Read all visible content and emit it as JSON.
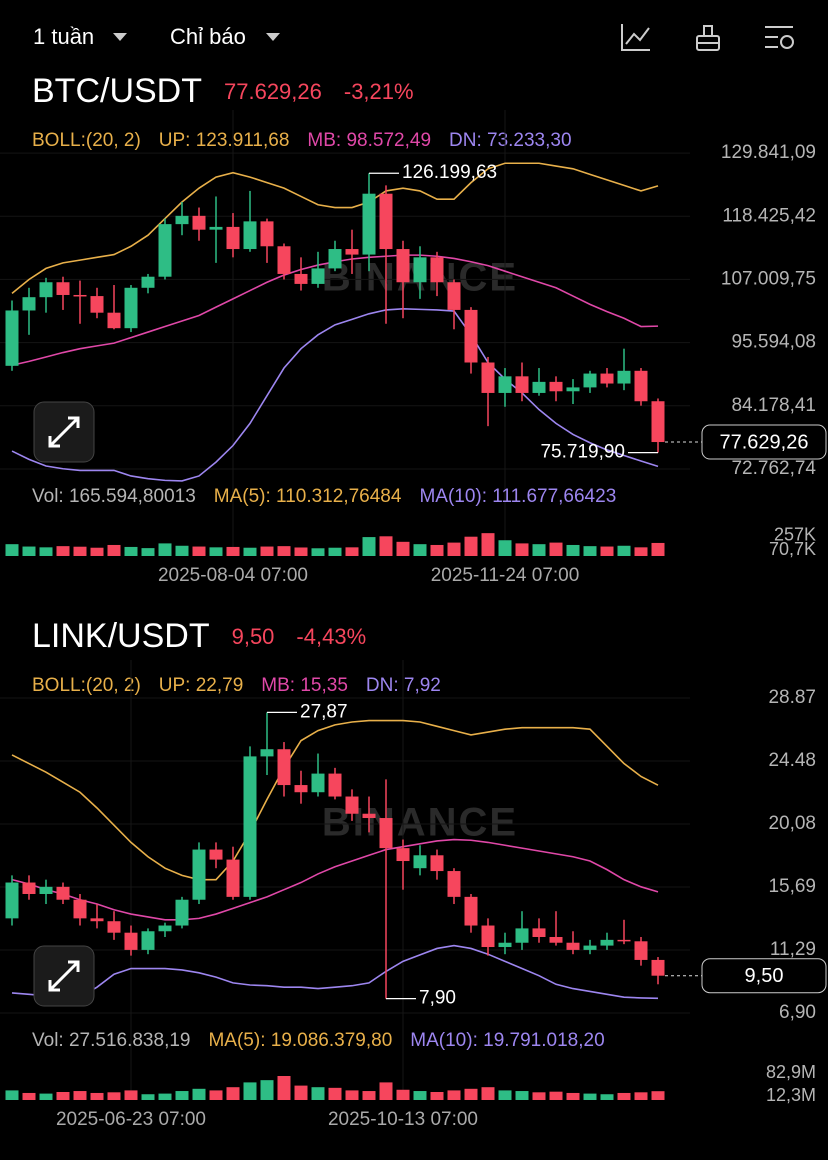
{
  "toolbar": {
    "interval": "1 tuần",
    "indicators": "Chỉ báo"
  },
  "chart_data": [
    {
      "type": "candlestick",
      "title": "BTC/USDT",
      "price": "77.629,26",
      "change": "-3,21%",
      "indicator": "BOLL:(20, 2)",
      "up_color": "#2ebd85",
      "down_color": "#f6465d",
      "watermark": "BINANCE",
      "categories": [
        null,
        null,
        null,
        null,
        null,
        null,
        null,
        null,
        null,
        null,
        null,
        null,
        null,
        "2025-08-04 07:00",
        null,
        null,
        null,
        null,
        null,
        null,
        null,
        null,
        null,
        null,
        null,
        null,
        null,
        null,
        null,
        "2025-11-24 07:00",
        null,
        null,
        null,
        null,
        null,
        null,
        null,
        null,
        null
      ],
      "open": [
        91400,
        101400,
        103800,
        106500,
        104200,
        104000,
        101000,
        98200,
        105500,
        107500,
        117000,
        118500,
        116000,
        116500,
        112500,
        117500,
        113000,
        108000,
        106200,
        109000,
        112500,
        111500,
        122500,
        112500,
        106500,
        111000,
        106500,
        101500,
        92000,
        86500,
        89500,
        86500,
        88500,
        86800,
        87500,
        90000,
        88200,
        90500,
        85000
      ],
      "high": [
        103200,
        105500,
        107300,
        107500,
        106800,
        105500,
        106000,
        106000,
        108000,
        118000,
        121000,
        120000,
        122000,
        119000,
        123000,
        118000,
        113500,
        111000,
        112000,
        114000,
        116000,
        126199.63,
        124000,
        114000,
        113000,
        112000,
        107000,
        102000,
        93000,
        91000,
        92000,
        91000,
        89500,
        89000,
        90500,
        91000,
        94500,
        91000,
        85500
      ],
      "low": [
        90500,
        97000,
        101000,
        101500,
        99000,
        100000,
        98000,
        97500,
        104500,
        107000,
        115000,
        114000,
        110000,
        111000,
        112000,
        110000,
        107000,
        105000,
        105500,
        108500,
        108000,
        108500,
        99000,
        100000,
        103500,
        104000,
        98000,
        90000,
        80500,
        84000,
        85000,
        86000,
        85000,
        84500,
        86500,
        87500,
        87000,
        84200,
        75719.9
      ],
      "close": [
        101400,
        103800,
        106500,
        104200,
        104000,
        101000,
        98200,
        105500,
        107500,
        117000,
        118500,
        116000,
        116500,
        112500,
        117500,
        113000,
        108000,
        106200,
        109000,
        112500,
        111500,
        122500,
        112500,
        106500,
        111000,
        106500,
        101500,
        92000,
        86500,
        89500,
        86500,
        88500,
        86800,
        87500,
        90000,
        88200,
        90500,
        85000,
        77629.26
      ],
      "bands": [
        {
          "label": "UP: 123.911,68",
          "color": "#e8b04a",
          "values": [
            104500,
            107000,
            109000,
            110000,
            110500,
            111000,
            111500,
            113000,
            115000,
            118000,
            121000,
            123500,
            125500,
            126300,
            125500,
            124500,
            123500,
            122000,
            120500,
            120000,
            120000,
            121000,
            123000,
            123500,
            123000,
            121500,
            121500,
            124500,
            127000,
            128000,
            128000,
            128000,
            127500,
            127000,
            126000,
            125000,
            124000,
            123000,
            123911.68
          ]
        },
        {
          "label": "MB: 98.572,49",
          "color": "#e048a8",
          "values": [
            91500,
            92200,
            93000,
            93800,
            94500,
            95000,
            95500,
            96500,
            97500,
            98500,
            99500,
            100500,
            102000,
            103500,
            105000,
            106500,
            107800,
            108800,
            109600,
            110200,
            110700,
            111000,
            111200,
            111400,
            111400,
            111200,
            110800,
            110200,
            109500,
            108500,
            107500,
            106500,
            105500,
            104000,
            102500,
            101200,
            100000,
            98500,
            98572.49
          ]
        },
        {
          "label": "DN: 73.233,30",
          "color": "#9d86f0",
          "values": [
            76000,
            74500,
            73300,
            72800,
            72500,
            72500,
            72500,
            71500,
            71000,
            70700,
            70600,
            71500,
            74000,
            77000,
            81000,
            86000,
            91000,
            94500,
            97000,
            98800,
            99800,
            100800,
            101500,
            101700,
            101600,
            101500,
            101300,
            97000,
            92000,
            89000,
            86500,
            83500,
            81000,
            79000,
            77500,
            76200,
            75200,
            74200,
            73233.3
          ]
        }
      ],
      "ylim": [
        69866,
        134009
      ],
      "yticks": [
        {
          "value": 129841.09,
          "label": "129.841,09"
        },
        {
          "value": 118425.42,
          "label": "118.425,42"
        },
        {
          "value": 107009.75,
          "label": "107.009,75"
        },
        {
          "value": 95594.08,
          "label": "95.594,08"
        },
        {
          "value": 84178.41,
          "label": "84.178,41"
        },
        {
          "value": 72762.74,
          "label": "72.762,74"
        }
      ],
      "high_mark": {
        "value": 126199.63,
        "label": "126.199,63"
      },
      "low_mark": {
        "value": 75719.9,
        "label": "75.719,90"
      },
      "last": {
        "value": 77629.26,
        "label": "77.629,26"
      },
      "stats": [
        "Vol: 165.594,80013",
        "MA(5): 110.312,76484",
        "MA(10): 111.677,66423"
      ],
      "volume": {
        "values": [
          150000,
          120000,
          110000,
          125000,
          118000,
          105000,
          140000,
          115000,
          100000,
          160000,
          130000,
          120000,
          110000,
          115000,
          105000,
          120000,
          125000,
          108000,
          98000,
          105000,
          110000,
          240000,
          250000,
          180000,
          150000,
          140000,
          170000,
          245000,
          290000,
          200000,
          160000,
          150000,
          170000,
          140000,
          125000,
          120000,
          130000,
          110000,
          165594.80013
        ],
        "ylim": [
          0,
          330000
        ],
        "yticks": [
          {
            "value": 257000,
            "label": "257K"
          },
          {
            "value": 70700,
            "label": "70,7K"
          }
        ]
      }
    },
    {
      "type": "candlestick",
      "title": "LINK/USDT",
      "price": "9,50",
      "change": "-4,43%",
      "indicator": "BOLL:(20, 2)",
      "up_color": "#2ebd85",
      "down_color": "#f6465d",
      "watermark": "BINANCE",
      "categories": [
        null,
        null,
        null,
        null,
        null,
        null,
        null,
        "2025-06-23 07:00",
        null,
        null,
        null,
        null,
        null,
        null,
        null,
        null,
        null,
        null,
        null,
        null,
        null,
        null,
        null,
        "2025-10-13 07:00",
        null,
        null,
        null,
        null,
        null,
        null,
        null,
        null,
        null,
        null,
        null,
        null,
        null,
        null,
        null
      ],
      "open": [
        13.5,
        16.0,
        15.2,
        15.7,
        14.8,
        13.5,
        13.3,
        12.5,
        11.3,
        12.6,
        13.0,
        14.8,
        18.3,
        17.6,
        15.0,
        24.8,
        25.3,
        22.8,
        22.3,
        23.6,
        22.0,
        20.8,
        20.5,
        18.4,
        17.0,
        17.9,
        16.8,
        15.0,
        13.0,
        11.5,
        11.8,
        12.8,
        12.2,
        11.8,
        11.3,
        11.6,
        12.0,
        11.9,
        10.6
      ],
      "high": [
        16.5,
        16.5,
        16.2,
        16.0,
        15.2,
        14.5,
        14.0,
        13.0,
        12.8,
        13.2,
        15.0,
        18.8,
        18.8,
        18.5,
        25.5,
        27.87,
        25.8,
        23.8,
        25.0,
        24.0,
        22.5,
        22.0,
        23.2,
        19.0,
        18.6,
        18.3,
        17.0,
        15.2,
        13.5,
        12.5,
        14.0,
        13.5,
        14.0,
        12.6,
        12.0,
        12.5,
        13.4,
        12.2,
        10.8
      ],
      "low": [
        13.0,
        14.8,
        14.5,
        14.5,
        13.0,
        12.8,
        12.0,
        10.9,
        11.0,
        12.2,
        12.8,
        14.5,
        17.0,
        14.8,
        14.8,
        23.5,
        22.0,
        21.5,
        22.0,
        21.8,
        20.3,
        19.5,
        7.9,
        15.5,
        16.5,
        16.2,
        14.5,
        12.5,
        10.9,
        11.0,
        11.3,
        11.8,
        11.6,
        11.0,
        11.0,
        11.3,
        11.7,
        10.2,
        8.9
      ],
      "close": [
        16.0,
        15.2,
        15.7,
        14.8,
        13.5,
        13.3,
        12.5,
        11.3,
        12.6,
        13.0,
        14.8,
        18.3,
        17.6,
        15.0,
        24.8,
        25.3,
        22.8,
        22.3,
        23.6,
        22.0,
        20.8,
        20.5,
        18.4,
        17.5,
        17.9,
        16.8,
        15.0,
        13.0,
        11.5,
        11.8,
        12.8,
        12.2,
        11.8,
        11.3,
        11.6,
        12.0,
        11.9,
        10.6,
        9.5
      ],
      "bands": [
        {
          "label": "UP: 22,79",
          "color": "#e8b04a",
          "values": [
            24.9,
            24.3,
            23.7,
            23.0,
            22.3,
            21.2,
            20.0,
            18.8,
            17.8,
            17.0,
            16.5,
            16.2,
            16.2,
            17.5,
            19.5,
            21.8,
            24.0,
            25.9,
            26.6,
            27.0,
            27.2,
            27.3,
            27.3,
            27.3,
            27.2,
            26.9,
            26.6,
            26.3,
            26.5,
            26.7,
            26.8,
            26.8,
            26.8,
            26.8,
            26.7,
            25.5,
            24.3,
            23.4,
            22.79
          ]
        },
        {
          "label": "MB: 15,35",
          "color": "#e048a8",
          "values": [
            16.2,
            15.9,
            15.5,
            15.2,
            14.8,
            14.5,
            14.1,
            13.8,
            13.6,
            13.4,
            13.4,
            13.5,
            13.8,
            14.2,
            14.6,
            15.0,
            15.5,
            16.0,
            16.6,
            17.1,
            17.5,
            17.9,
            18.3,
            18.5,
            18.7,
            18.9,
            19.0,
            18.95,
            18.8,
            18.6,
            18.4,
            18.2,
            18.0,
            17.8,
            17.5,
            16.9,
            16.2,
            15.7,
            15.35
          ]
        },
        {
          "label": "DN: 7,92",
          "color": "#9d86f0",
          "values": [
            8.3,
            8.2,
            8.1,
            8.0,
            8.0,
            8.7,
            9.6,
            10.0,
            10.0,
            10.0,
            9.9,
            9.7,
            9.4,
            9.0,
            8.85,
            8.8,
            8.7,
            8.7,
            8.6,
            8.7,
            8.8,
            9.0,
            9.8,
            10.5,
            10.95,
            11.4,
            11.6,
            11.4,
            11.0,
            10.5,
            10.0,
            9.5,
            8.9,
            8.6,
            8.4,
            8.2,
            8.0,
            7.95,
            7.92
          ]
        }
      ],
      "ylim": [
        6.06,
        30.13
      ],
      "yticks": [
        28.87,
        24.48,
        {
          "value": 20.08,
          "label": "20,08"
        },
        {
          "value": 15.69,
          "label": "15,69"
        },
        {
          "value": 11.29,
          "label": "11,29"
        },
        {
          "value": 6.9,
          "label": "6,90"
        }
      ],
      "high_mark": {
        "value": 27.87,
        "label": "27,87"
      },
      "low_mark": {
        "value": 7.9,
        "label": "7,90"
      },
      "last": {
        "value": 9.5,
        "label": "9,50"
      },
      "stats": [
        "Vol: 27.516.838,19",
        "MA(5): 19.086.379,80",
        "MA(10): 19.791.018,20"
      ],
      "volume": {
        "values": [
          30000000,
          22000000,
          20000000,
          25000000,
          28000000,
          22000000,
          24000000,
          30000000,
          18000000,
          20000000,
          28000000,
          35000000,
          30000000,
          40000000,
          55000000,
          62000000,
          75000000,
          45000000,
          40000000,
          38000000,
          30000000,
          28000000,
          55000000,
          32000000,
          28000000,
          25000000,
          30000000,
          35000000,
          40000000,
          30000000,
          28000000,
          24000000,
          26000000,
          22000000,
          20000000,
          18000000,
          22000000,
          24000000,
          27516838.19
        ],
        "ylim": [
          0,
          100000000
        ],
        "yticks": [
          {
            "value": 82900000,
            "label": "82,9M"
          },
          {
            "value": 12300000,
            "label": "12,3M"
          }
        ]
      }
    }
  ]
}
